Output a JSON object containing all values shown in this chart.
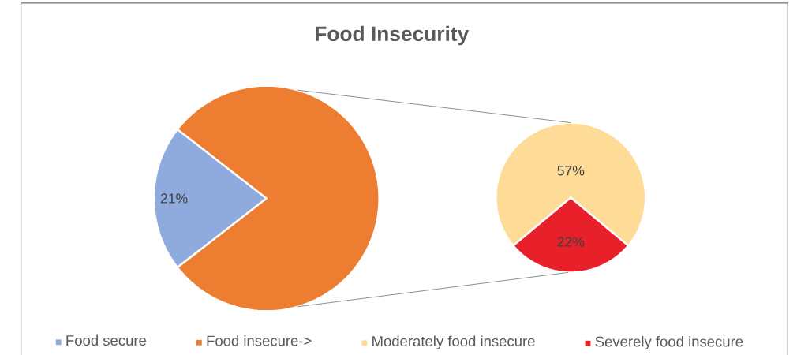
{
  "chart_data": [
    {
      "type": "pie",
      "title": "Food Insecurity",
      "categories": [
        "Food secure",
        "Food insecure->"
      ],
      "values": [
        21,
        79
      ],
      "colors": [
        "#8faadc",
        "#ed7d31"
      ],
      "value_labels": [
        "21%",
        null
      ],
      "legend": "bottom"
    },
    {
      "type": "pie",
      "categories": [
        "Moderately food insecure",
        "Severely food insecure"
      ],
      "values": [
        57,
        22
      ],
      "colors": [
        "#fedb97",
        "#e8202a"
      ],
      "value_labels": [
        "57%",
        "22%"
      ],
      "legend": "bottom"
    }
  ]
}
